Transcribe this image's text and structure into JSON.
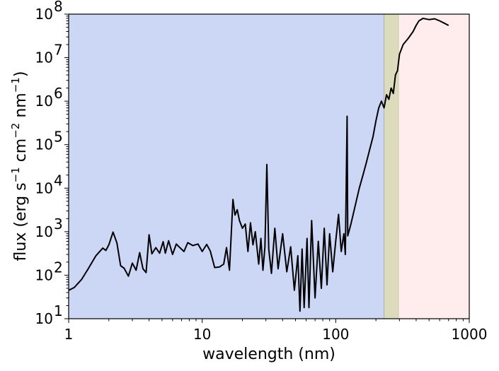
{
  "chart_data": {
    "type": "line",
    "xlabel": "wavelength (nm)",
    "ylabel_parts": {
      "main": "flux (erg s",
      "e1": "−1",
      "m2": " cm",
      "e2": "−2",
      "m3": " nm",
      "e3": "−1",
      "end": ")"
    },
    "xscale": "log",
    "yscale": "log",
    "xlim": [
      1,
      1000
    ],
    "ylim": [
      10,
      100000000
    ],
    "grid": false,
    "x_ticks": [
      {
        "value": 1,
        "label": "1"
      },
      {
        "value": 10,
        "label": "10"
      },
      {
        "value": 100,
        "label": "100"
      },
      {
        "value": 1000,
        "label": "1000"
      }
    ],
    "y_ticks": [
      {
        "value": 10,
        "base": "10",
        "exp": "1"
      },
      {
        "value": 100,
        "base": "10",
        "exp": "2"
      },
      {
        "value": 1000,
        "base": "10",
        "exp": "3"
      },
      {
        "value": 10000,
        "base": "10",
        "exp": "4"
      },
      {
        "value": 100000,
        "base": "10",
        "exp": "5"
      },
      {
        "value": 1000000,
        "base": "10",
        "exp": "6"
      },
      {
        "value": 10000000,
        "base": "10",
        "exp": "7"
      },
      {
        "value": 100000000,
        "base": "10",
        "exp": "8"
      }
    ],
    "bands": [
      {
        "x0": 1,
        "x1": 230,
        "color": "#ccd6f5"
      },
      {
        "x0": 230,
        "x1": 295,
        "color": "#dcdcbd"
      },
      {
        "x0": 295,
        "x1": 1000,
        "color": "#ffeded"
      }
    ],
    "series": [
      {
        "color": "#000000",
        "points": [
          [
            1.0,
            45
          ],
          [
            1.1,
            52
          ],
          [
            1.25,
            80
          ],
          [
            1.4,
            140
          ],
          [
            1.6,
            280
          ],
          [
            1.8,
            420
          ],
          [
            1.9,
            370
          ],
          [
            2.0,
            500
          ],
          [
            2.15,
            980
          ],
          [
            2.3,
            550
          ],
          [
            2.45,
            165
          ],
          [
            2.6,
            145
          ],
          [
            2.8,
            95
          ],
          [
            3.0,
            190
          ],
          [
            3.2,
            130
          ],
          [
            3.4,
            330
          ],
          [
            3.6,
            140
          ],
          [
            3.8,
            115
          ],
          [
            4.0,
            850
          ],
          [
            4.2,
            310
          ],
          [
            4.5,
            430
          ],
          [
            4.8,
            320
          ],
          [
            5.1,
            590
          ],
          [
            5.3,
            320
          ],
          [
            5.6,
            620
          ],
          [
            6.0,
            300
          ],
          [
            6.4,
            520
          ],
          [
            6.8,
            430
          ],
          [
            7.3,
            350
          ],
          [
            7.8,
            560
          ],
          [
            8.5,
            480
          ],
          [
            9.3,
            520
          ],
          [
            10.0,
            350
          ],
          [
            10.8,
            510
          ],
          [
            11.5,
            360
          ],
          [
            12.4,
            150
          ],
          [
            13.5,
            155
          ],
          [
            14.5,
            180
          ],
          [
            15.2,
            430
          ],
          [
            16.0,
            130
          ],
          [
            17.0,
            5500
          ],
          [
            17.6,
            2400
          ],
          [
            18.3,
            3200
          ],
          [
            19.0,
            1800
          ],
          [
            20.0,
            1200
          ],
          [
            21.0,
            1500
          ],
          [
            22.0,
            350
          ],
          [
            23.0,
            1600
          ],
          [
            24.0,
            500
          ],
          [
            25.0,
            1000
          ],
          [
            26.5,
            180
          ],
          [
            27.5,
            700
          ],
          [
            28.5,
            130
          ],
          [
            29.5,
            450
          ],
          [
            30.5,
            35000
          ],
          [
            31.5,
            400
          ],
          [
            33.0,
            110
          ],
          [
            35.0,
            1200
          ],
          [
            37.0,
            140
          ],
          [
            40.0,
            900
          ],
          [
            43.0,
            120
          ],
          [
            46.0,
            450
          ],
          [
            49.0,
            45
          ],
          [
            52.0,
            280
          ],
          [
            54.0,
            15
          ],
          [
            56.0,
            400
          ],
          [
            58.0,
            18
          ],
          [
            61.0,
            700
          ],
          [
            63.0,
            18
          ],
          [
            66.0,
            1800
          ],
          [
            70.0,
            30
          ],
          [
            74.0,
            600
          ],
          [
            78.0,
            50
          ],
          [
            82.0,
            1200
          ],
          [
            86.0,
            60
          ],
          [
            90.0,
            900
          ],
          [
            95.0,
            120
          ],
          [
            100.0,
            600
          ],
          [
            105.0,
            2500
          ],
          [
            110.0,
            350
          ],
          [
            115.0,
            900
          ],
          [
            118.0,
            300
          ],
          [
            121.6,
            450000
          ],
          [
            123.0,
            800
          ],
          [
            130.0,
            1500
          ],
          [
            140.0,
            4000
          ],
          [
            150.0,
            10000
          ],
          [
            160.0,
            20000
          ],
          [
            170.0,
            40000
          ],
          [
            180.0,
            80000
          ],
          [
            190.0,
            150000
          ],
          [
            200.0,
            350000
          ],
          [
            210.0,
            700000
          ],
          [
            220.0,
            1000000
          ],
          [
            230.0,
            700000
          ],
          [
            240.0,
            1400000
          ],
          [
            250.0,
            1100000
          ],
          [
            260.0,
            2000000
          ],
          [
            270.0,
            1500000
          ],
          [
            280.0,
            4000000
          ],
          [
            290.0,
            5000000
          ],
          [
            300.0,
            12000000
          ],
          [
            320.0,
            20000000
          ],
          [
            350.0,
            28000000
          ],
          [
            380.0,
            40000000
          ],
          [
            400.0,
            55000000
          ],
          [
            420.0,
            70000000
          ],
          [
            450.0,
            80000000
          ],
          [
            500.0,
            75000000
          ],
          [
            550.0,
            78000000
          ],
          [
            600.0,
            70000000
          ],
          [
            650.0,
            62000000
          ],
          [
            700.0,
            55000000
          ]
        ]
      }
    ]
  }
}
